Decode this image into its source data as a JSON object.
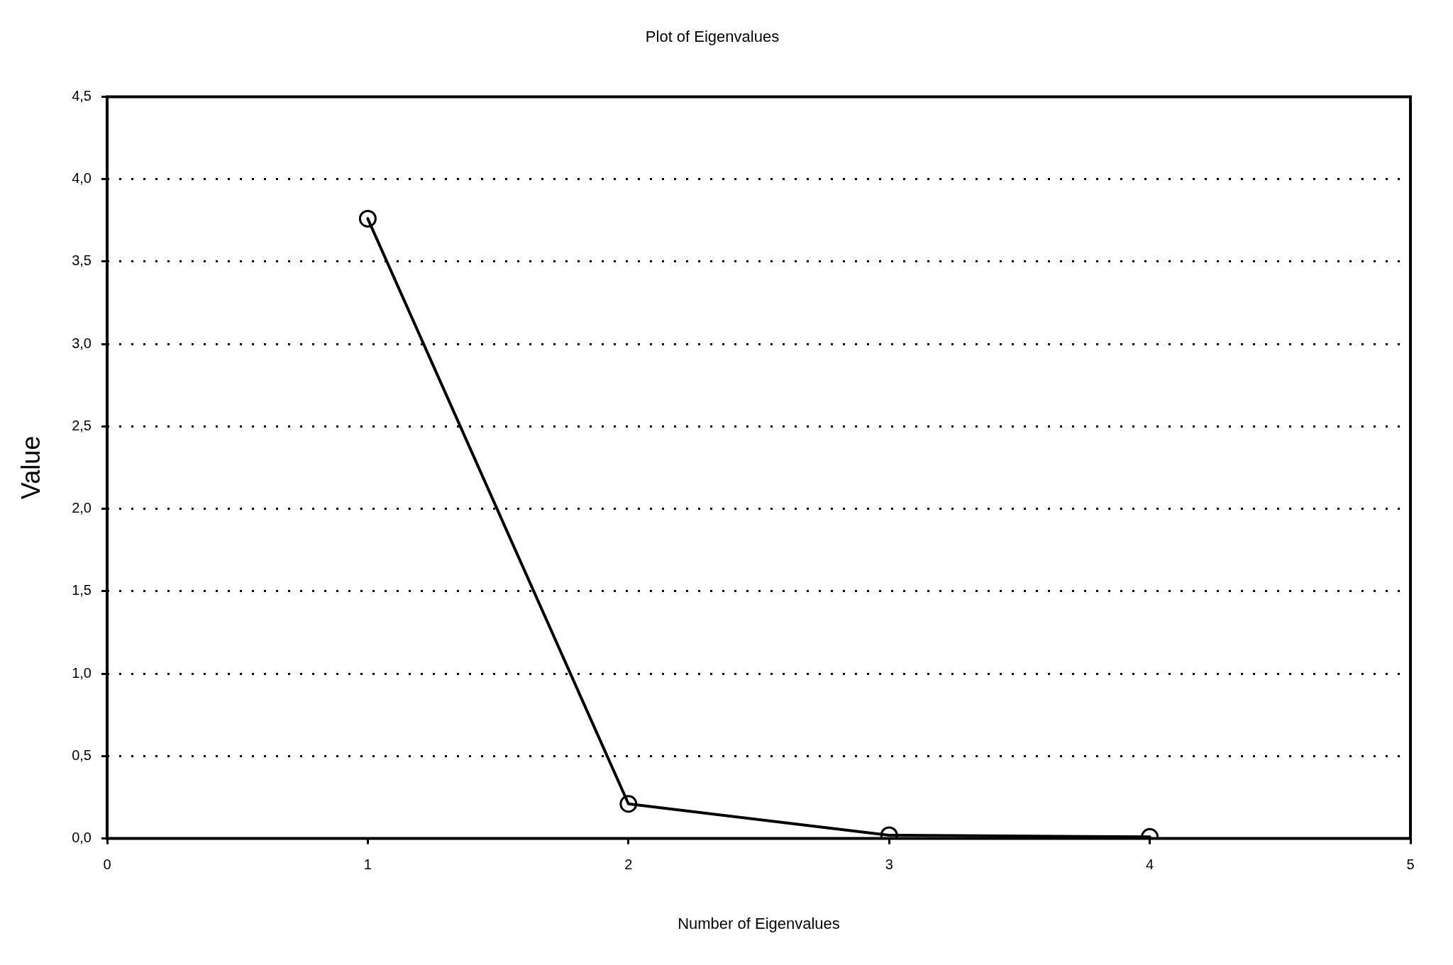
{
  "chart_data": {
    "type": "line",
    "title": "Plot of Eigenvalues",
    "xlabel": "Number of Eigenvalues",
    "ylabel": "Value",
    "x": [
      1,
      2,
      3,
      4
    ],
    "series": [
      {
        "color": "#000000",
        "values": [
          3.76,
          0.21,
          0.02,
          0.01
        ]
      }
    ],
    "xlim": [
      0,
      5
    ],
    "xticks": [
      0,
      1,
      2,
      3,
      4,
      5
    ],
    "ylim": [
      0,
      4.5
    ],
    "yticks": [
      {
        "value": 0,
        "label": "0,0"
      },
      {
        "value": 0.5,
        "label": "0,5"
      },
      {
        "value": 1,
        "label": "1,0"
      },
      {
        "value": 1.5,
        "label": "1,5"
      },
      {
        "value": 2,
        "label": "2,0"
      },
      {
        "value": 2.5,
        "label": "2,5"
      },
      {
        "value": 3,
        "label": "3,0"
      },
      {
        "value": 3.5,
        "label": "3,5"
      },
      {
        "value": 4,
        "label": "4,0"
      },
      {
        "value": 4.5,
        "label": "4,5"
      }
    ],
    "grid": "y",
    "legend": false,
    "marker": "circle",
    "line_style": "solid"
  }
}
